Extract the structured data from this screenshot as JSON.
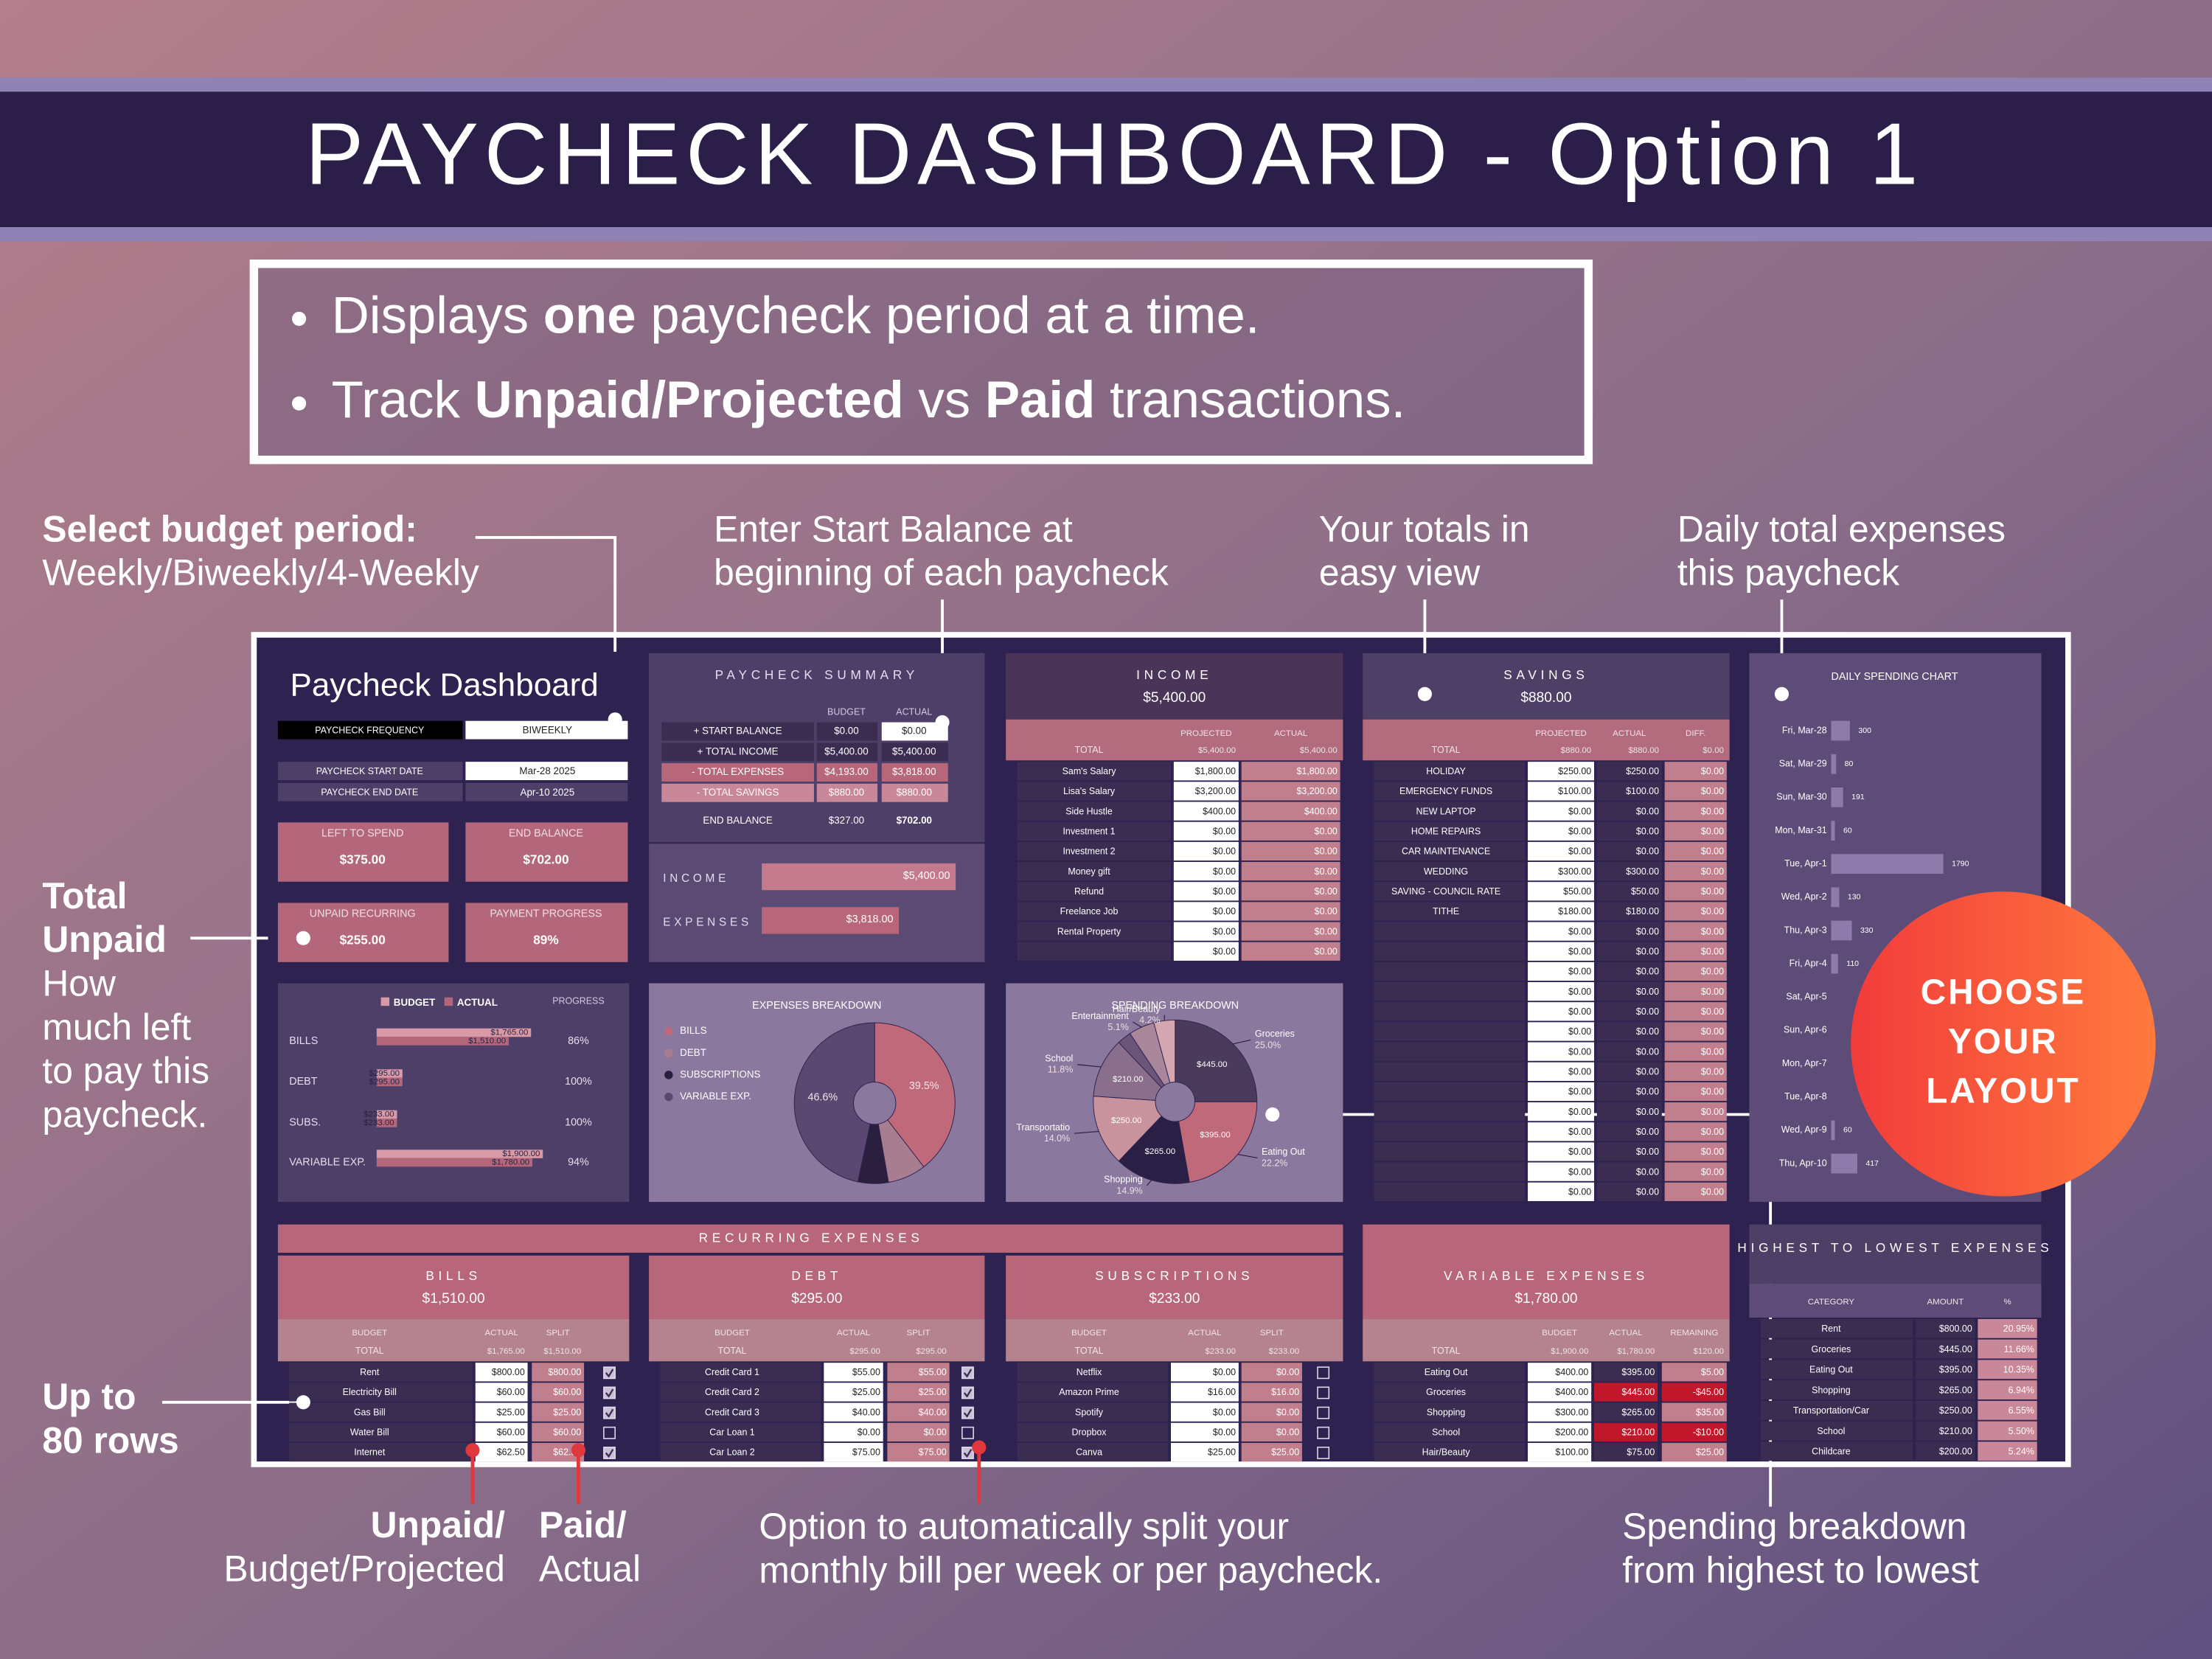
{
  "header": {
    "title": "PAYCHECK DASHBOARD - Option 1"
  },
  "features": [
    [
      {
        "text": "Displays "
      },
      {
        "text": "one",
        "bold": true
      },
      {
        "text": " paycheck period at a time."
      }
    ],
    [
      {
        "text": "Track "
      },
      {
        "text": "Unpaid/Projected",
        "bold": true
      },
      {
        "text": " vs "
      },
      {
        "text": "Paid",
        "bold": true
      },
      {
        "text": " transactions."
      }
    ]
  ],
  "callouts": [
    {
      "bold": [
        "Select budget period:"
      ],
      "text": [
        "Weekly/Biweekly/4-Weekly"
      ]
    },
    {
      "bold": [],
      "text": [
        "Enter Start Balance at",
        "beginning of each paycheck"
      ]
    },
    {
      "bold": [],
      "text": [
        "Your totals in",
        "easy view"
      ]
    },
    {
      "bold": [],
      "text": [
        "Daily total expenses",
        "this paycheck"
      ]
    },
    {
      "bold": [
        "Total",
        "Unpaid"
      ],
      "text": [
        "How",
        "much left",
        "to pay this",
        "paycheck."
      ]
    },
    {
      "bold": [
        "Up to",
        "80 rows"
      ],
      "text": []
    },
    {
      "bold": [
        "Unpaid/"
      ],
      "text": [
        "Budget/Projected"
      ]
    },
    {
      "bold": [
        "Paid/"
      ],
      "text": [
        "Actual"
      ]
    },
    {
      "bold": [],
      "text": [
        "Option to automatically split your",
        "monthly bill per week or per paycheck."
      ]
    },
    {
      "bold": [],
      "text": [
        "Spending breakdown",
        "from highest to lowest"
      ]
    }
  ],
  "badge": {
    "lines": [
      "CHOOSE",
      "YOUR",
      "LAYOUT"
    ]
  },
  "dashboard": {
    "title": "Paycheck Dashboard",
    "settings": [
      [
        "PAYCHECK FREQUENCY",
        "BIWEEKLY"
      ],
      [
        "PAYCHECK START DATE",
        "Mar-28 2025"
      ],
      [
        "PAYCHECK END DATE",
        "Apr-10 2025"
      ]
    ],
    "kpis": [
      {
        "label": "LEFT TO SPEND",
        "value": "$375.00"
      },
      {
        "label": "END BALANCE",
        "value": "$702.00"
      },
      {
        "label": "UNPAID RECURRING",
        "value": "$255.00"
      },
      {
        "label": "PAYMENT PROGRESS",
        "value": "89%"
      }
    ],
    "progress": {
      "type": "bar",
      "legend": [
        "BUDGET",
        "ACTUAL"
      ],
      "progress_title": "PROGRESS",
      "categories": [
        "BILLS",
        "DEBT",
        "SUBS.",
        "VARIABLE EXP."
      ],
      "xlim": [
        0,
        2000
      ],
      "series": [
        {
          "name": "BUDGET",
          "color": "#d99aa8",
          "values": [
            1765,
            295,
            233,
            1900
          ],
          "value_labels": [
            "$1,765.00",
            "$295.00",
            "$233.00",
            "$1,900.00"
          ]
        },
        {
          "name": "ACTUAL",
          "color": "#b4677a",
          "values": [
            1510,
            295,
            233,
            1780
          ],
          "value_labels": [
            "$1,510.00",
            "$295.00",
            "$233.00",
            "$1,780.00"
          ]
        }
      ],
      "progress": [
        86,
        100,
        100,
        94
      ],
      "progress_labels": [
        "86%",
        "100%",
        "100%",
        "94%"
      ]
    },
    "summary": {
      "title": "PAYCHECK SUMMARY",
      "columns": [
        "BUDGET",
        "ACTUAL"
      ],
      "rows": [
        [
          "+ START BALANCE",
          "$0.00",
          "$0.00"
        ],
        [
          "+ TOTAL INCOME",
          "$5,400.00",
          "$5,400.00"
        ],
        [
          "- TOTAL EXPENSES",
          "$4,193.00",
          "$3,818.00"
        ],
        [
          "- TOTAL SAVINGS",
          "$880.00",
          "$880.00"
        ],
        [
          "END BALANCE",
          "$327.00",
          "$702.00"
        ]
      ],
      "chart": {
        "type": "bar",
        "categories": [
          "INCOME",
          "EXPENSES"
        ],
        "values": [
          5400,
          3818
        ],
        "value_labels": [
          "$5,400.00",
          "$3,818.00"
        ],
        "colors": [
          "#c27a8c",
          "#b8677a"
        ],
        "xlim": [
          0,
          5500
        ]
      }
    },
    "income": {
      "title": "INCOME",
      "total": "$5,400.00",
      "columns": [
        "PROJECTED",
        "ACTUAL"
      ],
      "total_row": [
        "TOTAL",
        "$5,400.00",
        "$5,400.00"
      ],
      "rows": [
        [
          "Sam's Salary",
          "$1,800.00",
          "$1,800.00"
        ],
        [
          "Lisa's Salary",
          "$3,200.00",
          "$3,200.00"
        ],
        [
          "Side Hustle",
          "$400.00",
          "$400.00"
        ],
        [
          "Investment 1",
          "$0.00",
          "$0.00"
        ],
        [
          "Investment 2",
          "$0.00",
          "$0.00"
        ],
        [
          "Money gift",
          "$0.00",
          "$0.00"
        ],
        [
          "Refund",
          "$0.00",
          "$0.00"
        ],
        [
          "Freelance Job",
          "$0.00",
          "$0.00"
        ],
        [
          "Rental Property",
          "$0.00",
          "$0.00"
        ],
        [
          null,
          "$0.00",
          "$0.00"
        ]
      ]
    },
    "savings": {
      "title": "SAVINGS",
      "total": "$880.00",
      "columns": [
        "PROJECTED",
        "ACTUAL",
        "DIFF."
      ],
      "total_row": [
        "TOTAL",
        "$880.00",
        "$880.00",
        "$0.00"
      ],
      "rows": [
        [
          "HOLIDAY",
          "$250.00",
          "$250.00",
          "$0.00"
        ],
        [
          "EMERGENCY FUNDS",
          "$100.00",
          "$100.00",
          "$0.00"
        ],
        [
          "NEW LAPTOP",
          "$0.00",
          "$0.00",
          "$0.00"
        ],
        [
          "HOME REPAIRS",
          "$0.00",
          "$0.00",
          "$0.00"
        ],
        [
          "CAR MAINTENANCE",
          "$0.00",
          "$0.00",
          "$0.00"
        ],
        [
          "WEDDING",
          "$300.00",
          "$300.00",
          "$0.00"
        ],
        [
          "SAVING - COUNCIL RATE",
          "$50.00",
          "$50.00",
          "$0.00"
        ],
        [
          "TITHE",
          "$180.00",
          "$180.00",
          "$0.00"
        ],
        [
          null,
          "$0.00",
          "$0.00",
          "$0.00"
        ],
        [
          null,
          "$0.00",
          "$0.00",
          "$0.00"
        ],
        [
          null,
          "$0.00",
          "$0.00",
          "$0.00"
        ],
        [
          null,
          "$0.00",
          "$0.00",
          "$0.00"
        ],
        [
          null,
          "$0.00",
          "$0.00",
          "$0.00"
        ],
        [
          null,
          "$0.00",
          "$0.00",
          "$0.00"
        ],
        [
          null,
          "$0.00",
          "$0.00",
          "$0.00"
        ],
        [
          null,
          "$0.00",
          "$0.00",
          "$0.00"
        ],
        [
          null,
          "$0.00",
          "$0.00",
          "$0.00"
        ],
        [
          null,
          "$0.00",
          "$0.00",
          "$0.00"
        ],
        [
          null,
          "$0.00",
          "$0.00",
          "$0.00"
        ],
        [
          null,
          "$0.00",
          "$0.00",
          "$0.00"
        ],
        [
          null,
          "$0.00",
          "$0.00",
          "$0.00"
        ],
        [
          null,
          "$0.00",
          "$0.00",
          "$0.00"
        ]
      ]
    },
    "daily_chart": {
      "type": "bar",
      "title": "DAILY SPENDING CHART",
      "color": "#8e7aab",
      "xlim": [
        0,
        1800
      ],
      "categories": [
        "Fri, Mar-28",
        "Sat, Mar-29",
        "Sun, Mar-30",
        "Mon, Mar-31",
        "Tue, Apr-1",
        "Wed, Apr-2",
        "Thu, Apr-3",
        "Fri, Apr-4",
        "Sat, Apr-5",
        "Sun, Apr-6",
        "Mon, Apr-7",
        "Tue, Apr-8",
        "Wed, Apr-9",
        "Thu, Apr-10"
      ],
      "values": [
        300,
        80,
        191,
        60,
        1790,
        130,
        330,
        110,
        null,
        null,
        null,
        null,
        60,
        417
      ]
    },
    "expenses_breakdown": {
      "type": "pie",
      "title": "EXPENSES BREAKDOWN",
      "categories": [
        "BILLS",
        "DEBT",
        "SUBSCRIPTIONS",
        "VARIABLE EXP."
      ],
      "values": [
        39.5,
        7.7,
        6.1,
        46.6
      ],
      "value_labels": [
        "39.5%",
        null,
        null,
        "46.6%"
      ],
      "colors": [
        "#c0697b",
        "#a87d8f",
        "#2a1f3f",
        "#5a4870"
      ]
    },
    "spending_breakdown": {
      "type": "pie",
      "title": "SPENDING BREAKDOWN",
      "categories": [
        "Groceries",
        "Eating Out",
        "Shopping",
        "Transportatio",
        "School",
        null,
        "Entertainment",
        "Hair/Beauty"
      ],
      "values": [
        25.0,
        22.2,
        14.9,
        14.0,
        11.8,
        2.8,
        5.1,
        4.2
      ],
      "value_labels": [
        "25.0%",
        "22.2%",
        "14.9%",
        "14.0%",
        "11.8%",
        null,
        "5.1%",
        "4.2%"
      ],
      "amount_labels": [
        "$445.00",
        "$395.00",
        "$265.00",
        "$250.00",
        "$210.00",
        null,
        null,
        null
      ],
      "colors": [
        "#4a3a5c",
        "#c0697b",
        "#2a1f45",
        "#c8939c",
        "#8a6f8c",
        "#6b5578",
        "#a9869a",
        "#d3a6b0"
      ]
    },
    "recurring": {
      "title": "RECURRING EXPENSES",
      "bills": {
        "title": "BILLS",
        "total": "$1,510.00",
        "columns": [
          "BUDGET",
          "ACTUAL",
          "SPLIT"
        ],
        "total_row": [
          "TOTAL",
          "$1,765.00",
          "$1,510.00"
        ],
        "rows": [
          [
            "Rent",
            "$800.00",
            "$800.00"
          ],
          [
            "Electricity Bill",
            "$60.00",
            "$60.00"
          ],
          [
            "Gas Bill",
            "$25.00",
            "$25.00"
          ],
          [
            "Water Bill",
            "$60.00",
            "$60.00"
          ],
          [
            "Internet",
            "$62.50",
            "$62.50"
          ]
        ],
        "split": [
          true,
          true,
          true,
          false,
          true
        ]
      },
      "debt": {
        "title": "DEBT",
        "total": "$295.00",
        "columns": [
          "BUDGET",
          "ACTUAL",
          "SPLIT"
        ],
        "total_row": [
          "TOTAL",
          "$295.00",
          "$295.00"
        ],
        "rows": [
          [
            "Credit Card 1",
            "$55.00",
            "$55.00"
          ],
          [
            "Credit Card 2",
            "$25.00",
            "$25.00"
          ],
          [
            "Credit Card 3",
            "$40.00",
            "$40.00"
          ],
          [
            "Car Loan 1",
            "$0.00",
            "$0.00"
          ],
          [
            "Car Loan 2",
            "$75.00",
            "$75.00"
          ]
        ],
        "split": [
          true,
          true,
          true,
          false,
          true
        ]
      },
      "subscriptions": {
        "title": "SUBSCRIPTIONS",
        "total": "$233.00",
        "columns": [
          "BUDGET",
          "ACTUAL",
          "SPLIT"
        ],
        "total_row": [
          "TOTAL",
          "$233.00",
          "$233.00"
        ],
        "rows": [
          [
            "Netflix",
            "$0.00",
            "$0.00"
          ],
          [
            "Amazon Prime",
            "$16.00",
            "$16.00"
          ],
          [
            "Spotify",
            "$0.00",
            "$0.00"
          ],
          [
            "Dropbox",
            "$0.00",
            "$0.00"
          ],
          [
            "Canva",
            "$25.00",
            "$25.00"
          ]
        ],
        "split": [
          false,
          false,
          false,
          false,
          false
        ]
      }
    },
    "variable": {
      "title": "VARIABLE EXPENSES",
      "total": "$1,780.00",
      "columns": [
        "BUDGET",
        "ACTUAL",
        "REMAINING"
      ],
      "total_row": [
        "TOTAL",
        "$1,900.00",
        "$1,780.00",
        "$120.00"
      ],
      "rows": [
        [
          "Eating Out",
          "$400.00",
          "$395.00",
          "$5.00"
        ],
        [
          "Groceries",
          "$400.00",
          "$445.00",
          "-$45.00"
        ],
        [
          "Shopping",
          "$300.00",
          "$265.00",
          "$35.00"
        ],
        [
          "School",
          "$200.00",
          "$210.00",
          "-$10.00"
        ],
        [
          "Hair/Beauty",
          "$100.00",
          "$75.00",
          "$25.00"
        ]
      ],
      "over_budget": [
        false,
        true,
        false,
        true,
        false
      ]
    },
    "highest": {
      "title": "HIGHEST TO LOWEST EXPENSES",
      "columns": [
        "CATEGORY",
        "AMOUNT",
        "%"
      ],
      "rows": [
        [
          "Rent",
          "$800.00",
          "20.95%"
        ],
        [
          "Groceries",
          "$445.00",
          "11.66%"
        ],
        [
          "Eating Out",
          "$395.00",
          "10.35%"
        ],
        [
          "Shopping",
          "$265.00",
          "6.94%"
        ],
        [
          "Transportation/Car",
          "$250.00",
          "6.55%"
        ],
        [
          "School",
          "$210.00",
          "5.50%"
        ],
        [
          "Childcare",
          "$200.00",
          "5.24%"
        ]
      ]
    }
  }
}
